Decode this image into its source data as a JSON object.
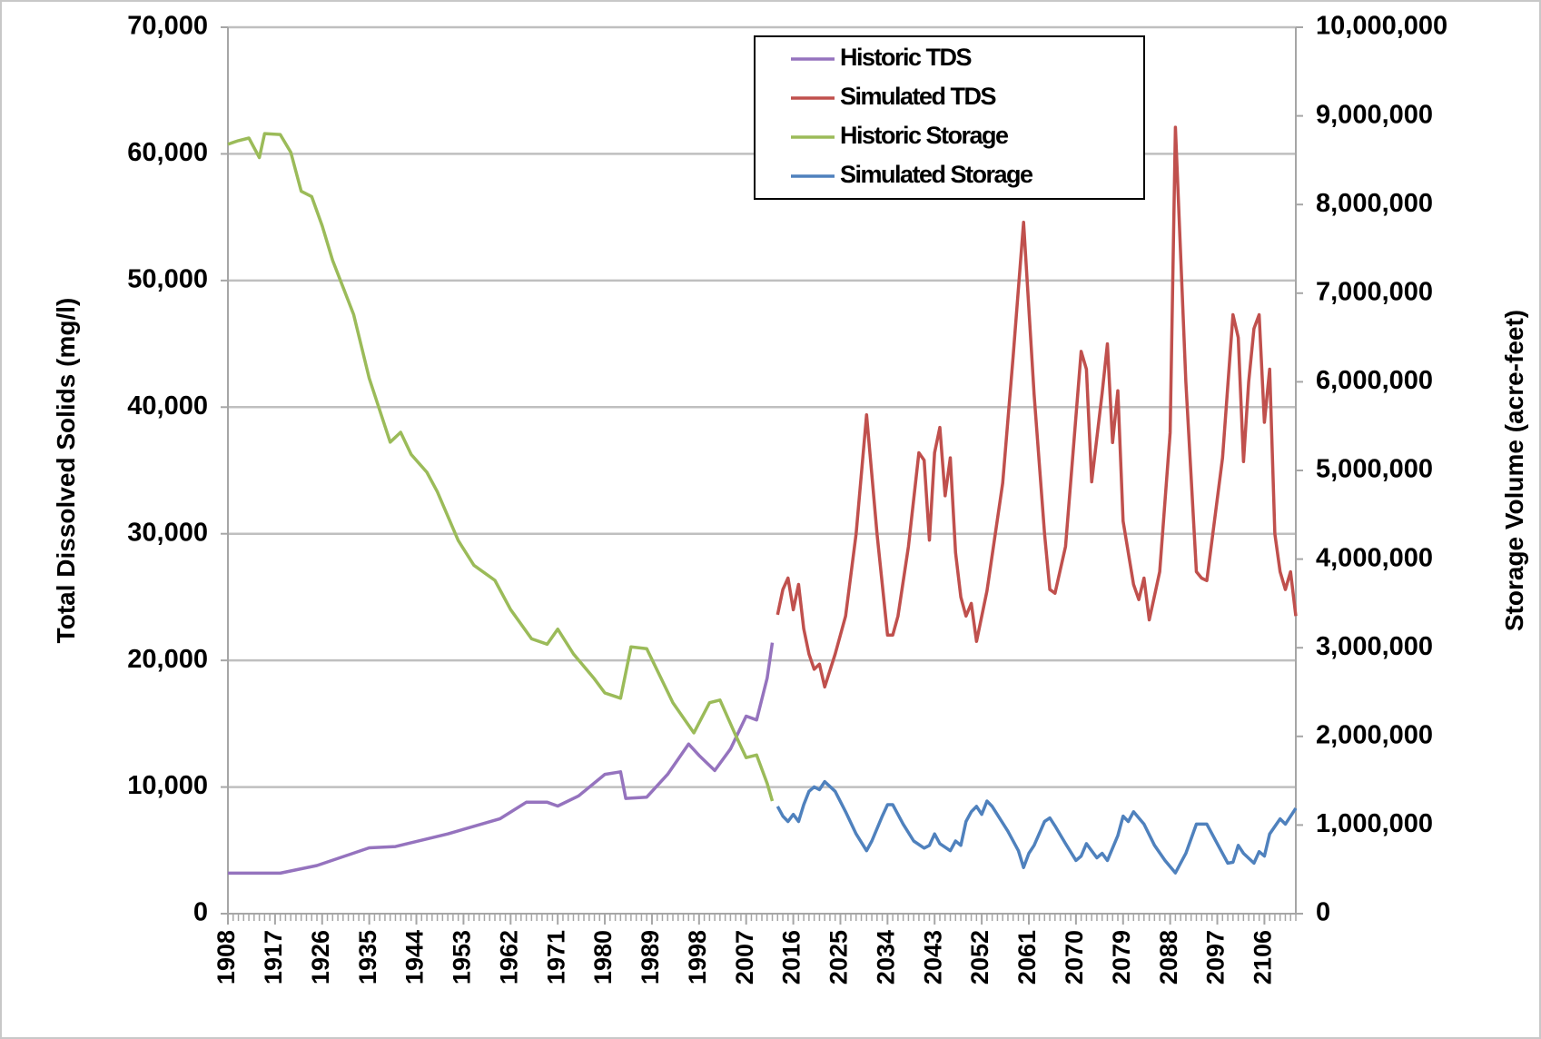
{
  "chart_data": {
    "type": "line",
    "y_label": "Total Dissolved Solids (mg/l)",
    "y2_label": "Storage Volume (acre-feet)",
    "xlim": [
      1908,
      2112
    ],
    "xticks": [
      1908,
      1917,
      1926,
      1935,
      1944,
      1953,
      1962,
      1971,
      1980,
      1989,
      1998,
      2007,
      2016,
      2025,
      2034,
      2043,
      2052,
      2061,
      2070,
      2079,
      2088,
      2097,
      2106
    ],
    "ylim": [
      0,
      70000
    ],
    "yticks": [
      0,
      {
        "value": 10000,
        "label": "10,000"
      },
      {
        "value": 20000,
        "label": "20,000"
      },
      {
        "value": 30000,
        "label": "30,000"
      },
      {
        "value": 40000,
        "label": "40,000"
      },
      {
        "value": 50000,
        "label": "50,000"
      },
      {
        "value": 60000,
        "label": "60,000"
      },
      {
        "value": 70000,
        "label": "70,000"
      }
    ],
    "y2lim": [
      0,
      10000000
    ],
    "y2ticks": [
      0,
      {
        "value": 1000000,
        "label": "1,000,000"
      },
      {
        "value": 2000000,
        "label": "2,000,000"
      },
      {
        "value": 3000000,
        "label": "3,000,000"
      },
      {
        "value": 4000000,
        "label": "4,000,000"
      },
      {
        "value": 5000000,
        "label": "5,000,000"
      },
      {
        "value": 6000000,
        "label": "6,000,000"
      },
      {
        "value": 7000000,
        "label": "7,000,000"
      },
      {
        "value": 8000000,
        "label": "8,000,000"
      },
      {
        "value": 9000000,
        "label": "9,000,000"
      },
      {
        "value": 10000000,
        "label": "10,000,000"
      }
    ],
    "grid": true,
    "legend": "top",
    "series": [
      {
        "name": "Historic TDS",
        "color": "#9573be",
        "x": [
          1908,
          1912,
          1918,
          1925,
          1935,
          1940,
          1950,
          1960,
          1965,
          1969,
          1971,
          1975,
          1980,
          1983,
          1984,
          1988,
          1992,
          1996,
          1998,
          2001,
          2004,
          2007,
          2009,
          2011,
          2012
        ],
        "values": [
          3200,
          3200,
          3200,
          3800,
          5200,
          5300,
          6300,
          7500,
          8800,
          8800,
          8500,
          9300,
          11000,
          11200,
          9100,
          9200,
          11000,
          13400,
          12500,
          11300,
          13000,
          15600,
          15300,
          18600,
          21400
        ]
      },
      {
        "name": "Simulated TDS",
        "color": "#c0504d",
        "x": [
          2013,
          2014,
          2015,
          2016,
          2017,
          2018,
          2019,
          2020,
          2021,
          2022,
          2024,
          2026,
          2028,
          2030,
          2032,
          2034,
          2035,
          2036,
          2038,
          2040,
          2041,
          2042,
          2043,
          2044,
          2045,
          2046,
          2047,
          2048,
          2049,
          2050,
          2051,
          2053,
          2056,
          2058,
          2060,
          2062,
          2064,
          2065,
          2066,
          2068,
          2071,
          2072,
          2073,
          2075,
          2076,
          2077,
          2078,
          2079,
          2081,
          2082,
          2083,
          2084,
          2086,
          2088,
          2089,
          2091,
          2093,
          2094,
          2095,
          2098,
          2100,
          2101,
          2102,
          2103,
          2104,
          2105,
          2106,
          2107,
          2108,
          2109,
          2110,
          2111,
          2112
        ],
        "values": [
          23600,
          25600,
          26500,
          24000,
          26000,
          22500,
          20500,
          19300,
          19700,
          17900,
          20500,
          23500,
          30000,
          39400,
          30000,
          22000,
          22000,
          23500,
          29000,
          36400,
          35800,
          29500,
          36400,
          38400,
          33000,
          36000,
          28500,
          25000,
          23500,
          24500,
          21500,
          25500,
          34000,
          44000,
          54600,
          41000,
          30000,
          25600,
          25300,
          29000,
          44400,
          43000,
          34100,
          41100,
          45000,
          37200,
          41300,
          31000,
          26000,
          24800,
          26500,
          23200,
          27000,
          38000,
          62100,
          42000,
          27000,
          26500,
          26300,
          36000,
          47300,
          45500,
          35700,
          42000,
          46200,
          47300,
          38800,
          43000,
          30000,
          27000,
          25600,
          27000,
          23500
        ]
      },
      {
        "name": "Historic Storage",
        "color": "#9bbb59",
        "axis": "y2",
        "x": [
          1908,
          1910,
          1912,
          1914,
          1915,
          1918,
          1920,
          1922,
          1924,
          1926,
          1928,
          1932,
          1935,
          1939,
          1941,
          1943,
          1946,
          1948,
          1952,
          1955,
          1959,
          1962,
          1966,
          1969,
          1971,
          1974,
          1978,
          1980,
          1983,
          1985,
          1988,
          1993,
          1997,
          2000,
          2002,
          2005,
          2007,
          2009,
          2011,
          2012
        ],
        "values": [
          8680000,
          8720000,
          8750000,
          8530000,
          8800000,
          8790000,
          8590000,
          8150000,
          8090000,
          7760000,
          7370000,
          6760000,
          6040000,
          5320000,
          5430000,
          5180000,
          4980000,
          4760000,
          4210000,
          3930000,
          3760000,
          3430000,
          3100000,
          3040000,
          3210000,
          2930000,
          2650000,
          2490000,
          2430000,
          3010000,
          2990000,
          2380000,
          2040000,
          2380000,
          2410000,
          2010000,
          1760000,
          1790000,
          1470000,
          1270000
        ]
      },
      {
        "name": "Simulated Storage",
        "color": "#4f81bd",
        "axis": "y2",
        "x": [
          2013,
          2014,
          2015,
          2016,
          2017,
          2018,
          2019,
          2020,
          2021,
          2022,
          2024,
          2026,
          2028,
          2030,
          2031,
          2033,
          2034,
          2035,
          2037,
          2039,
          2041,
          2042,
          2043,
          2044,
          2046,
          2047,
          2048,
          2049,
          2050,
          2051,
          2052,
          2053,
          2054,
          2057,
          2059,
          2060,
          2061,
          2062,
          2064,
          2065,
          2066,
          2068,
          2070,
          2071,
          2072,
          2074,
          2075,
          2076,
          2078,
          2079,
          2080,
          2081,
          2083,
          2085,
          2087,
          2089,
          2091,
          2093,
          2095,
          2097,
          2099,
          2100,
          2101,
          2102,
          2104,
          2105,
          2106,
          2107,
          2109,
          2110,
          2112
        ],
        "values": [
          1210000,
          1100000,
          1040000,
          1120000,
          1040000,
          1230000,
          1380000,
          1430000,
          1400000,
          1490000,
          1380000,
          1150000,
          900000,
          710000,
          820000,
          1100000,
          1230000,
          1230000,
          1010000,
          820000,
          740000,
          770000,
          900000,
          790000,
          710000,
          820000,
          770000,
          1040000,
          1150000,
          1210000,
          1120000,
          1270000,
          1210000,
          930000,
          710000,
          520000,
          680000,
          770000,
          1040000,
          1080000,
          990000,
          790000,
          600000,
          650000,
          790000,
          630000,
          680000,
          600000,
          880000,
          1100000,
          1040000,
          1150000,
          1010000,
          770000,
          600000,
          460000,
          680000,
          1010000,
          1010000,
          790000,
          570000,
          580000,
          770000,
          680000,
          570000,
          700000,
          650000,
          900000,
          1070000,
          1010000,
          1190000
        ]
      }
    ]
  }
}
